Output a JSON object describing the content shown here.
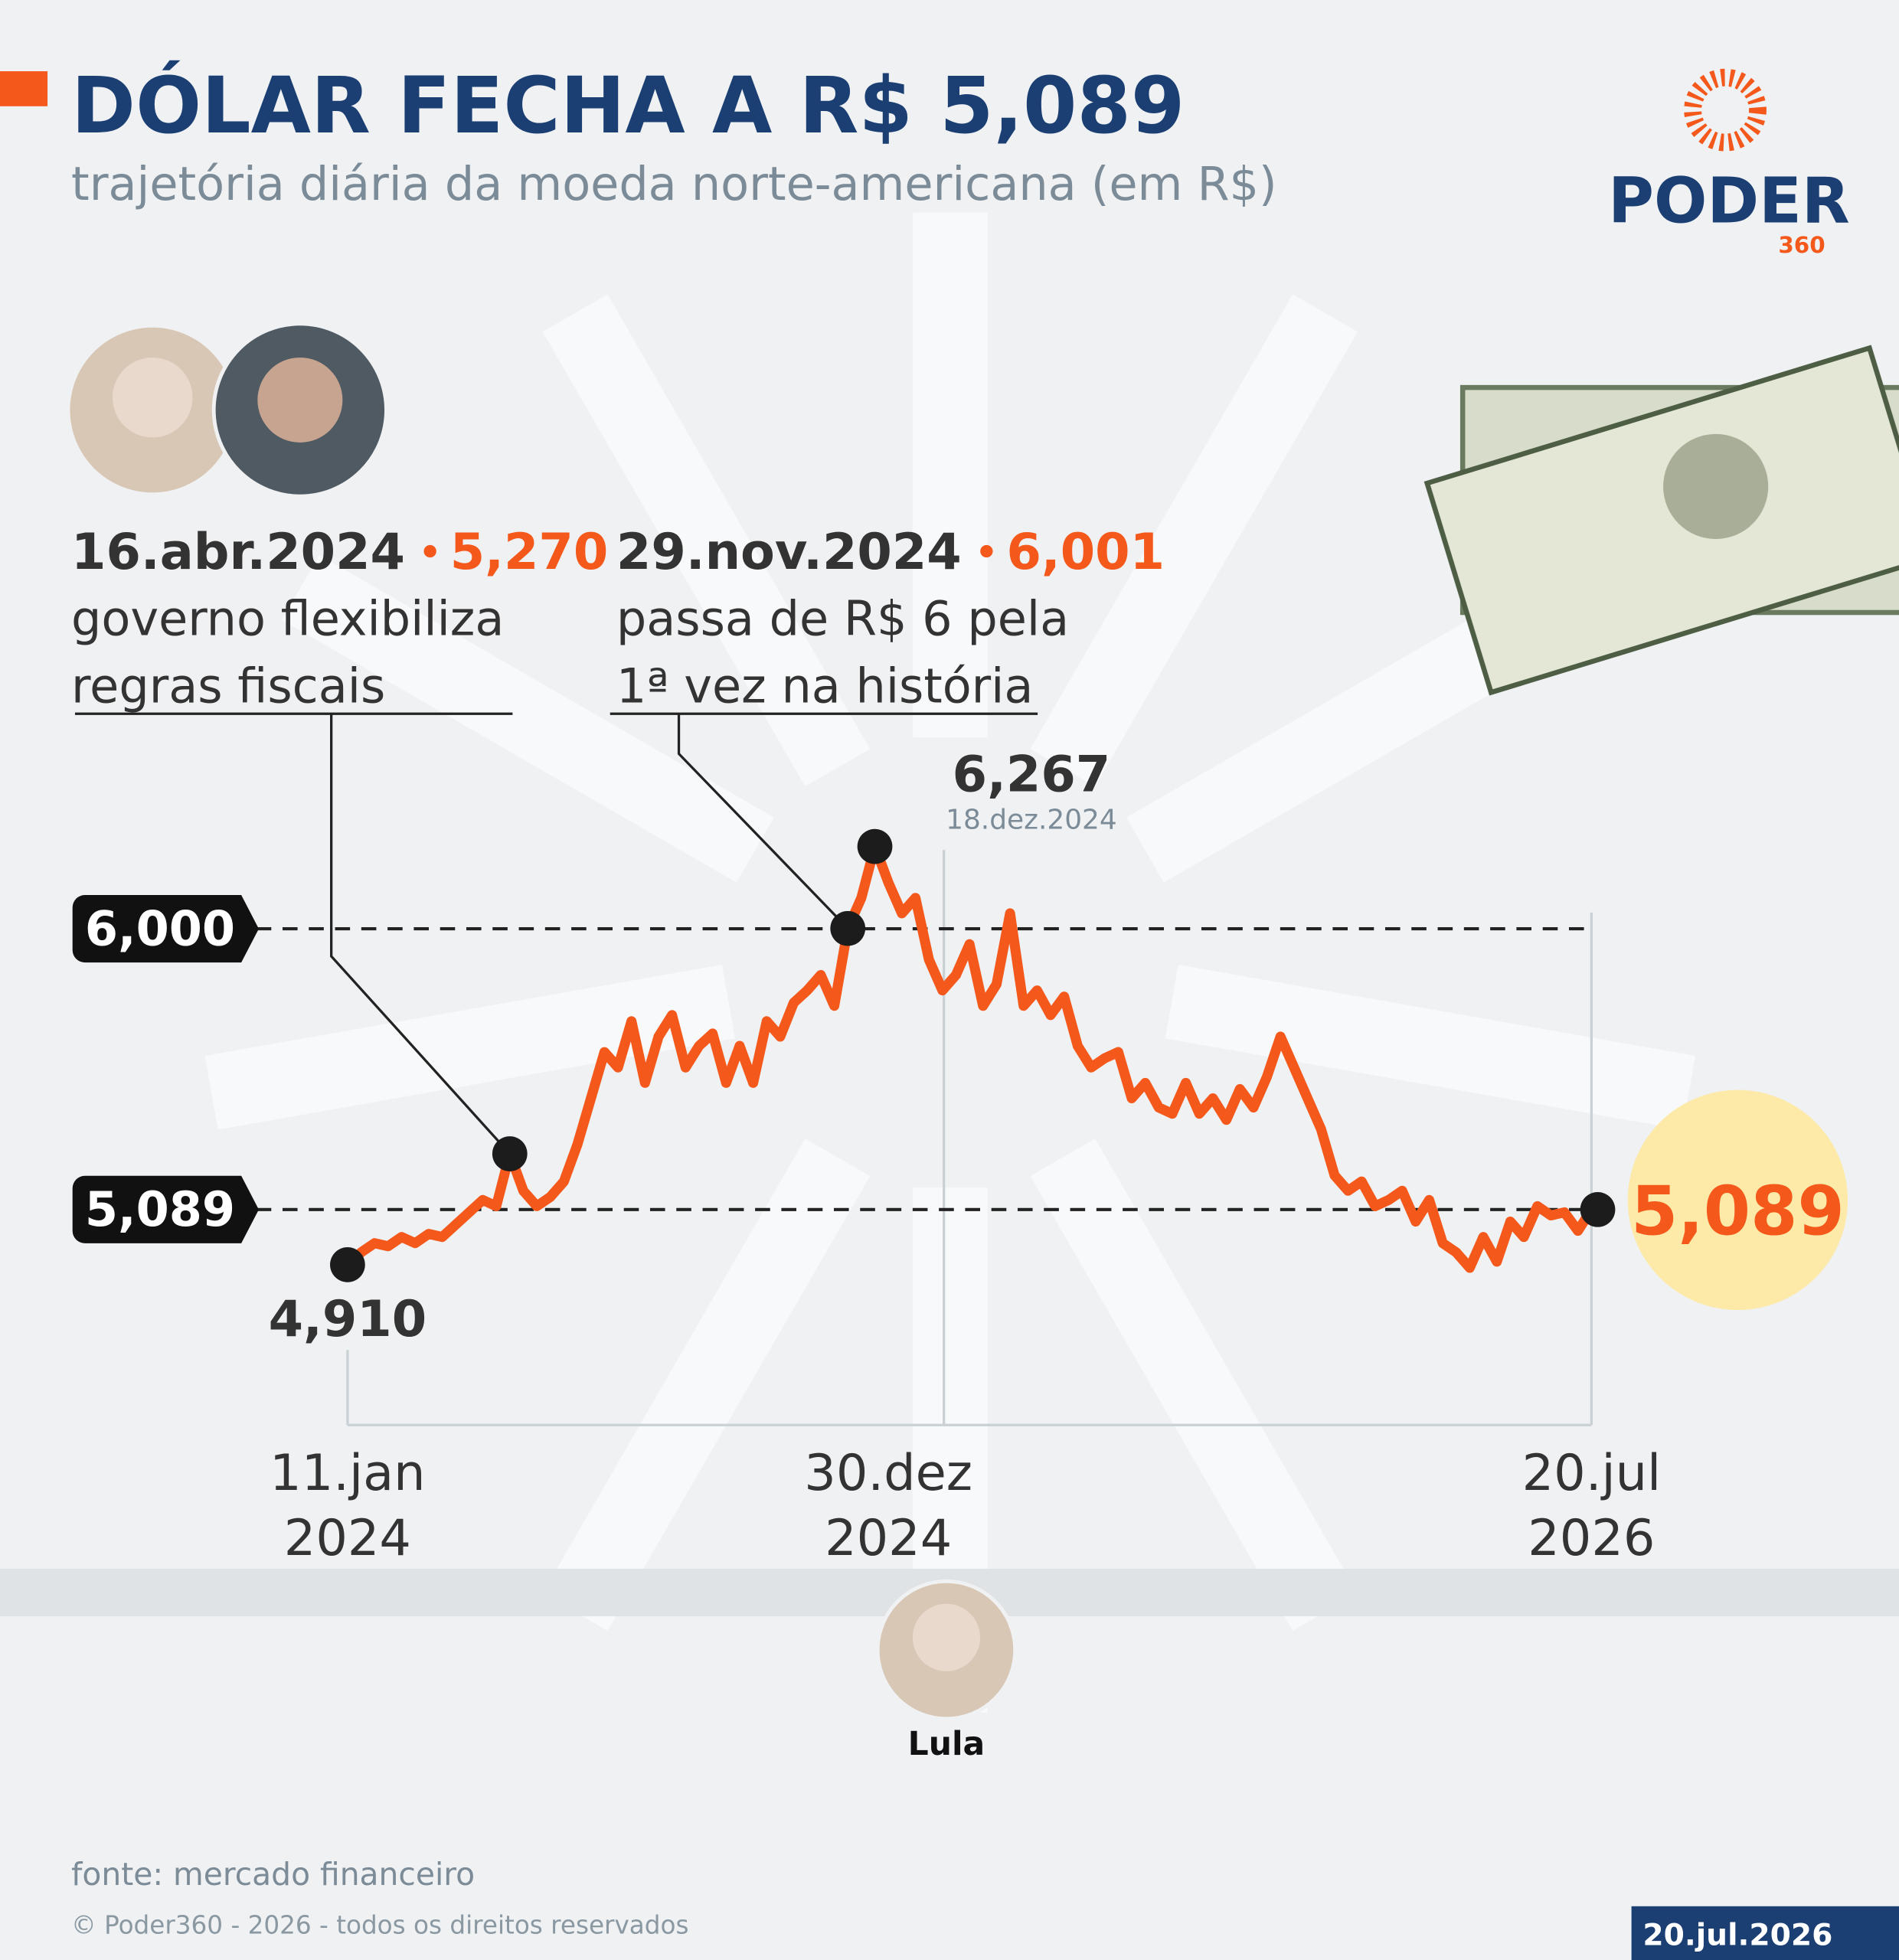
{
  "chart_data": {
    "type": "line",
    "title": "DÓLAR FECHA A R$ 5,089",
    "subtitle": "trajetória diária da moeda norte-americana (em R$)",
    "categories": [
      "11.jan 2024",
      null,
      null,
      null,
      null,
      null,
      null,
      null,
      null,
      null,
      null,
      null,
      null,
      null,
      null,
      null,
      null,
      null,
      null,
      null,
      null,
      null,
      null,
      null,
      null,
      null,
      null,
      null,
      null,
      null,
      null,
      null,
      null,
      null,
      null,
      null,
      null,
      null,
      null,
      null,
      "30.dez 2024",
      null,
      null,
      null,
      null,
      null,
      null,
      null,
      null,
      null,
      null,
      null,
      null,
      null,
      null,
      null,
      null,
      null,
      null,
      null,
      null,
      null,
      null,
      null,
      null,
      null,
      null,
      null,
      null,
      null,
      null,
      null,
      null,
      null,
      null,
      null,
      null,
      null,
      null,
      null,
      null,
      null,
      null,
      null,
      null,
      null,
      null,
      null,
      null,
      null,
      null,
      null,
      "20.jul 2026"
    ],
    "values": [
      4.91,
      4.95,
      4.98,
      4.97,
      5.0,
      4.98,
      5.01,
      5.0,
      5.04,
      5.08,
      5.12,
      5.1,
      5.27,
      5.15,
      5.1,
      5.13,
      5.18,
      5.3,
      5.45,
      5.6,
      5.55,
      5.7,
      5.5,
      5.65,
      5.72,
      5.55,
      5.62,
      5.66,
      5.5,
      5.62,
      5.5,
      5.7,
      5.65,
      5.76,
      5.8,
      5.85,
      5.75,
      6.001,
      6.1,
      6.267,
      6.15,
      6.05,
      6.1,
      5.9,
      5.8,
      5.85,
      5.95,
      5.75,
      5.82,
      6.05,
      5.75,
      5.8,
      5.72,
      5.78,
      5.62,
      5.55,
      5.58,
      5.6,
      5.45,
      5.5,
      5.42,
      5.4,
      5.5,
      5.4,
      5.45,
      5.38,
      5.48,
      5.42,
      5.52,
      5.65,
      5.55,
      5.45,
      5.35,
      5.2,
      5.15,
      5.18,
      5.1,
      5.12,
      5.15,
      5.05,
      5.12,
      4.98,
      4.95,
      4.9,
      5.0,
      4.92,
      5.05,
      5.0,
      5.1,
      5.07,
      5.08,
      5.02,
      5.089
    ],
    "value_labels": [
      "4,910",
      null,
      null,
      null,
      null,
      null,
      null,
      null,
      null,
      null,
      null,
      null,
      "5,270",
      null,
      null,
      null,
      null,
      null,
      null,
      null,
      null,
      null,
      null,
      null,
      null,
      null,
      null,
      null,
      null,
      null,
      null,
      null,
      null,
      null,
      null,
      null,
      null,
      "6,001",
      null,
      "6,267",
      null,
      null,
      null,
      null,
      null,
      null,
      null,
      null,
      null,
      null,
      null,
      null,
      null,
      null,
      null,
      null,
      null,
      null,
      null,
      null,
      null,
      null,
      null,
      null,
      null,
      null,
      null,
      null,
      null,
      null,
      null,
      null,
      null,
      null,
      null,
      null,
      null,
      null,
      null,
      null,
      null,
      null,
      null,
      null,
      null,
      null,
      null,
      null,
      null,
      null,
      null,
      null,
      "5,089"
    ],
    "color": "#f4581b",
    "ylim": [
      4.39,
      6.58
    ],
    "yticks": [
      {
        "value": 6,
        "label": "6,000"
      },
      {
        "value": 5.089,
        "label": "5,089"
      }
    ],
    "annotations": [
      {
        "date": "16.abr.2024",
        "lines": [
          "governo flexibiliza",
          "regras fiscais"
        ]
      },
      {
        "date": "29.nov.2024",
        "lines": [
          "passa de R$ 6 pela",
          "1ª vez na história"
        ]
      }
    ],
    "peak_date": "18.dez.2024"
  },
  "logo": {
    "name": "PODER",
    "number": "360"
  },
  "person": "Lula",
  "source": "fonte: mercado financeiro",
  "copyright": "© Poder360 - 2026 - todos os direitos reservados",
  "date": "20.jul.2026"
}
